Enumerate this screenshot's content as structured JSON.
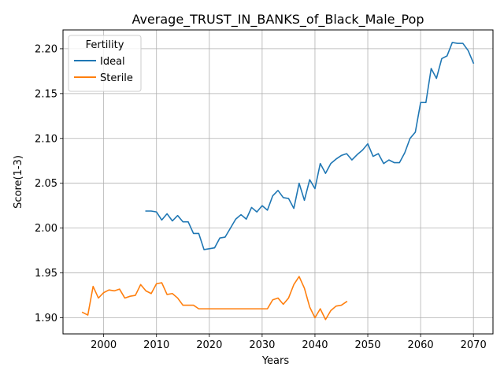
{
  "chart_data": {
    "type": "line",
    "title": "Average_TRUST_IN_BANKS_of_Black_Male_Pop",
    "xlabel": "Years",
    "ylabel": "Score(1-3)",
    "xlim": [
      1992.3,
      2073.7
    ],
    "ylim": [
      1.882,
      2.221
    ],
    "xticks": [
      2000,
      2010,
      2020,
      2030,
      2040,
      2050,
      2060,
      2070
    ],
    "yticks": [
      1.9,
      1.95,
      2.0,
      2.05,
      2.1,
      2.15,
      2.2
    ],
    "ytick_labels": [
      "1.90",
      "1.95",
      "2.00",
      "2.05",
      "2.10",
      "2.15",
      "2.20"
    ],
    "grid": true,
    "legend": {
      "title": "Fertility",
      "position": "upper-left"
    },
    "series": [
      {
        "name": "Ideal",
        "color": "#1f77b4",
        "x": [
          2008,
          2009,
          2010,
          2011,
          2012,
          2013,
          2014,
          2015,
          2016,
          2017,
          2018,
          2019,
          2020,
          2021,
          2022,
          2023,
          2024,
          2025,
          2026,
          2027,
          2028,
          2029,
          2030,
          2031,
          2032,
          2033,
          2034,
          2035,
          2036,
          2037,
          2038,
          2039,
          2040,
          2041,
          2042,
          2043,
          2044,
          2045,
          2046,
          2047,
          2048,
          2049,
          2050,
          2051,
          2052,
          2053,
          2054,
          2055,
          2056,
          2057,
          2058,
          2059,
          2060,
          2061,
          2062,
          2063,
          2064,
          2065,
          2066,
          2067,
          2068,
          2069,
          2070
        ],
        "values": [
          2.019,
          2.019,
          2.018,
          2.009,
          2.016,
          2.008,
          2.014,
          2.007,
          2.007,
          1.994,
          1.994,
          1.976,
          1.977,
          1.978,
          1.989,
          1.99,
          2.0,
          2.01,
          2.015,
          2.01,
          2.023,
          2.018,
          2.025,
          2.02,
          2.036,
          2.042,
          2.034,
          2.033,
          2.022,
          2.05,
          2.031,
          2.054,
          2.044,
          2.072,
          2.061,
          2.072,
          2.077,
          2.081,
          2.083,
          2.076,
          2.082,
          2.087,
          2.094,
          2.08,
          2.083,
          2.072,
          2.076,
          2.073,
          2.073,
          2.084,
          2.1,
          2.107,
          2.14,
          2.14,
          2.178,
          2.167,
          2.189,
          2.192,
          2.207,
          2.206,
          2.206,
          2.198,
          2.184
        ]
      },
      {
        "name": "Sterile",
        "color": "#ff7f0e",
        "x": [
          1996,
          1997,
          1998,
          1999,
          2000,
          2001,
          2002,
          2003,
          2004,
          2005,
          2006,
          2007,
          2008,
          2009,
          2010,
          2011,
          2012,
          2013,
          2014,
          2015,
          2016,
          2017,
          2018,
          2019,
          2020,
          2021,
          2022,
          2023,
          2024,
          2025,
          2026,
          2027,
          2028,
          2029,
          2030,
          2031,
          2032,
          2033,
          2034,
          2035,
          2036,
          2037,
          2038,
          2039,
          2040,
          2041,
          2042,
          2043,
          2044,
          2045,
          2046
        ],
        "values": [
          1.906,
          1.903,
          1.935,
          1.922,
          1.928,
          1.931,
          1.93,
          1.932,
          1.922,
          1.924,
          1.925,
          1.937,
          1.93,
          1.927,
          1.938,
          1.939,
          1.926,
          1.927,
          1.922,
          1.914,
          1.914,
          1.914,
          1.91,
          1.91,
          1.91,
          1.91,
          1.91,
          1.91,
          1.91,
          1.91,
          1.91,
          1.91,
          1.91,
          1.91,
          1.91,
          1.91,
          1.92,
          1.922,
          1.915,
          1.922,
          1.937,
          1.946,
          1.933,
          1.912,
          1.9,
          1.91,
          1.898,
          1.908,
          1.913,
          1.914,
          1.918
        ]
      }
    ]
  }
}
